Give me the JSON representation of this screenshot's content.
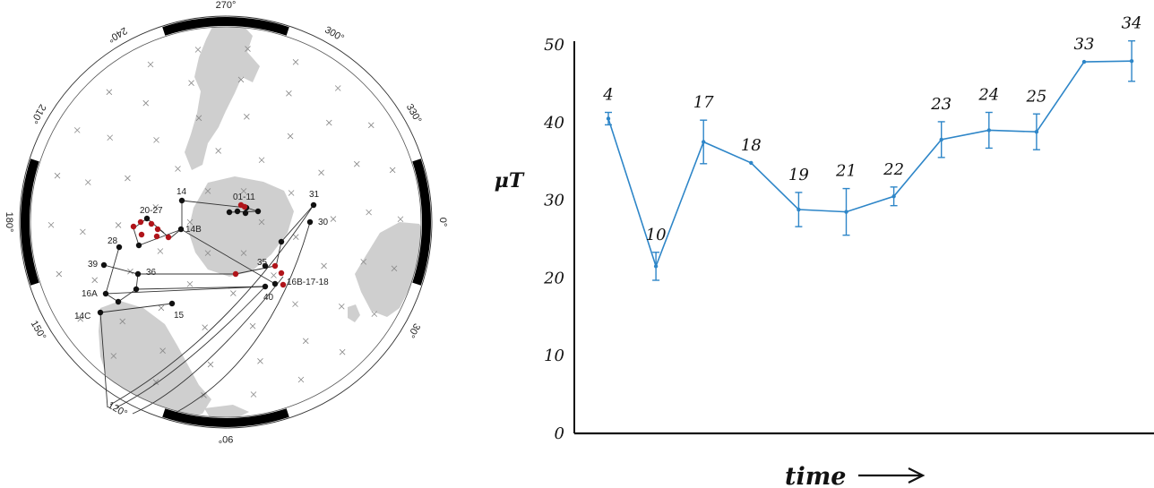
{
  "left_figure": {
    "type": "polar-path-map",
    "degree_labels": [
      {
        "text": "270°",
        "deg": 270
      },
      {
        "text": "300°",
        "deg": 300
      },
      {
        "text": "330°",
        "deg": 330
      },
      {
        "text": "0°",
        "deg": 0
      },
      {
        "text": "30°",
        "deg": 30
      },
      {
        "text": "90°",
        "deg": 90
      },
      {
        "text": "120°",
        "deg": 120
      },
      {
        "text": "150°",
        "deg": 150
      },
      {
        "text": "180°",
        "deg": 180
      },
      {
        "text": "210°",
        "deg": 210
      },
      {
        "text": "240°",
        "deg": 240
      }
    ],
    "point_labels": [
      "01-11",
      "14",
      "14B",
      "20-27",
      "28",
      "39",
      "36",
      "16A",
      "14C",
      "15",
      "31",
      "30",
      "35",
      "16B-17-18",
      "40"
    ],
    "colors": {
      "black_point": "#111111",
      "red_point": "#b0141a",
      "land": "#cfcfcf",
      "path": "#333333",
      "grid": "#888888"
    }
  },
  "chart_data": {
    "type": "line",
    "categories": [
      "4",
      "10",
      "17",
      "18",
      "19",
      "21",
      "22",
      "23",
      "24",
      "25",
      "33",
      "34"
    ],
    "series": [
      {
        "values": [
          40.5,
          21.5,
          37.5,
          34.8,
          28.8,
          28.5,
          30.5,
          37.8,
          39.0,
          38.8,
          47.8,
          47.9
        ],
        "error": [
          0.8,
          1.8,
          2.8,
          0,
          2.2,
          3.0,
          1.2,
          2.3,
          2.3,
          2.3,
          0,
          2.6
        ],
        "color": "#2e86c8"
      }
    ],
    "ylabel": "μT",
    "xlabel": "time",
    "ylim": [
      0,
      50
    ],
    "yticks": [
      "0",
      "10",
      "20",
      "30",
      "40",
      "50"
    ],
    "grid": false,
    "legend": "none"
  }
}
